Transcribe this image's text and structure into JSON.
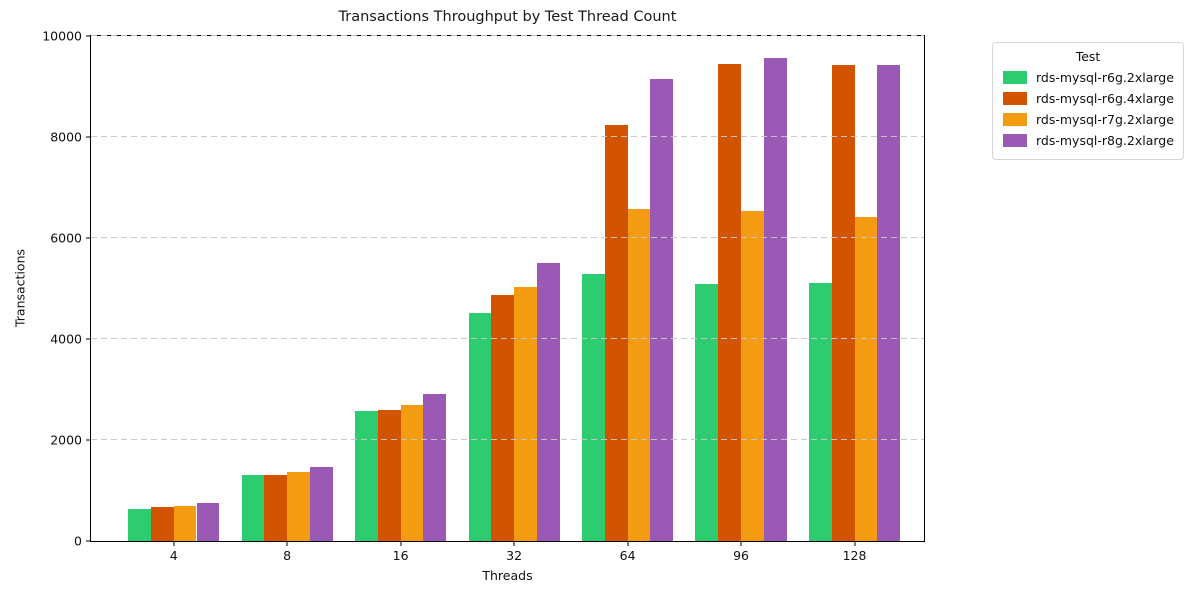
{
  "chart_data": {
    "type": "bar",
    "title": "Transactions Throughput by Test Thread Count",
    "xlabel": "Threads",
    "ylabel": "Transactions",
    "categories": [
      "4",
      "8",
      "16",
      "32",
      "64",
      "96",
      "128"
    ],
    "series": [
      {
        "name": "rds-mysql-r6g.2xlarge",
        "color": "#2ecc71",
        "values": [
          640,
          1310,
          2560,
          4500,
          5260,
          5070,
          5090
        ]
      },
      {
        "name": "rds-mysql-r6g.4xlarge",
        "color": "#d35400",
        "values": [
          665,
          1300,
          2590,
          4860,
          8200,
          9400,
          9380
        ]
      },
      {
        "name": "rds-mysql-r7g.2xlarge",
        "color": "#f39c12",
        "values": [
          690,
          1360,
          2690,
          5020,
          6550,
          6500,
          6390
        ]
      },
      {
        "name": "rds-mysql-r8g.2xlarge",
        "color": "#9b59b6",
        "values": [
          745,
          1460,
          2890,
          5490,
          9110,
          9530,
          9380
        ]
      }
    ],
    "ylim": [
      0,
      10000
    ],
    "yticks": [
      0,
      2000,
      4000,
      6000,
      8000,
      10000
    ],
    "grid": "horizontal-dashed",
    "legend_title": "Test",
    "legend_position": "upper-right-outside"
  }
}
